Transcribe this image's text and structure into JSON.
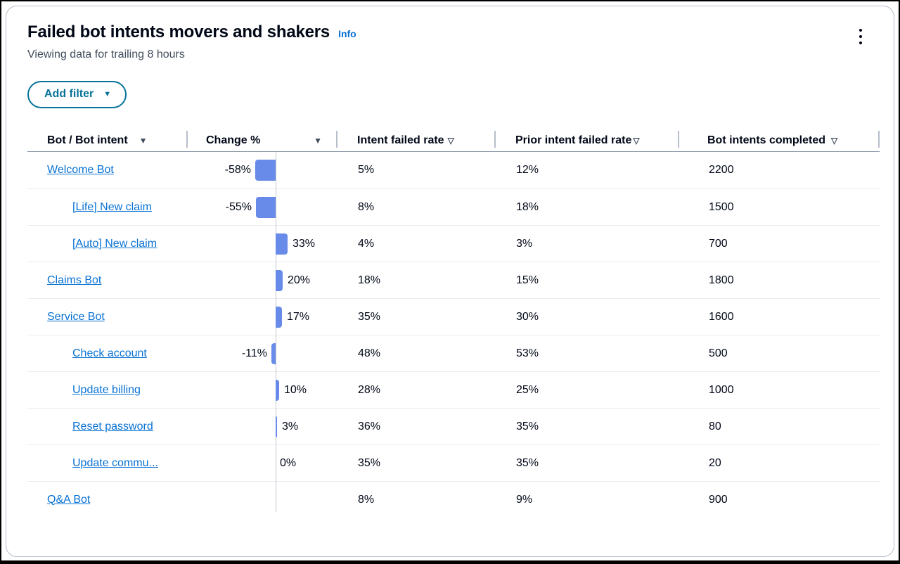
{
  "colors": {
    "accent-link": "#0972d3",
    "filter-accent": "#077398",
    "bar-fill": "#688ae8",
    "text-primary": "#000716",
    "text-secondary": "#414d5c",
    "card-border": "#b6bec9",
    "header-rule": "#8f9cab",
    "row-rule": "#e9ebed",
    "axis-line": "#c1c7d0"
  },
  "card": {
    "title": "Failed bot intents movers and shakers",
    "info_label": "Info",
    "subtitle": "Viewing data for trailing 8 hours",
    "add_filter_label": "Add filter"
  },
  "table": {
    "columns": [
      {
        "id": "bot",
        "label": "Bot / Bot intent",
        "sort_icon": "filled-triangle-down"
      },
      {
        "id": "change",
        "label": "Change %",
        "sort_icon": "filled-triangle-down"
      },
      {
        "id": "intent-failed-rate",
        "label": "Intent failed rate",
        "sort_icon": "outline-triangle-down"
      },
      {
        "id": "prior-intent-failed-rate",
        "label": "Prior intent failed rate",
        "sort_icon": "outline-triangle-down"
      },
      {
        "id": "bot-intents-completed",
        "label": "Bot intents completed",
        "sort_icon": "outline-triangle-down"
      }
    ],
    "rows": [
      {
        "name": "Welcome Bot",
        "level": 0,
        "change_pct": -58,
        "change_label": "-58%",
        "intent_failed_rate": "5%",
        "prior_intent_failed_rate": "12%",
        "bot_intents_completed": "2200"
      },
      {
        "name": "[Life] New claim",
        "level": 1,
        "change_pct": -55,
        "change_label": "-55%",
        "intent_failed_rate": "8%",
        "prior_intent_failed_rate": "18%",
        "bot_intents_completed": "1500"
      },
      {
        "name": "[Auto] New claim",
        "level": 1,
        "change_pct": 33,
        "change_label": "33%",
        "intent_failed_rate": "4%",
        "prior_intent_failed_rate": "3%",
        "bot_intents_completed": "700"
      },
      {
        "name": "Claims Bot",
        "level": 0,
        "change_pct": 20,
        "change_label": "20%",
        "intent_failed_rate": "18%",
        "prior_intent_failed_rate": "15%",
        "bot_intents_completed": "1800"
      },
      {
        "name": "Service Bot",
        "level": 0,
        "change_pct": 17,
        "change_label": "17%",
        "intent_failed_rate": "35%",
        "prior_intent_failed_rate": "30%",
        "bot_intents_completed": "1600"
      },
      {
        "name": "Check account",
        "level": 1,
        "change_pct": -11,
        "change_label": "-11%",
        "intent_failed_rate": "48%",
        "prior_intent_failed_rate": "53%",
        "bot_intents_completed": "500"
      },
      {
        "name": "Update billing",
        "level": 1,
        "change_pct": 10,
        "change_label": "10%",
        "intent_failed_rate": "28%",
        "prior_intent_failed_rate": "25%",
        "bot_intents_completed": "1000"
      },
      {
        "name": "Reset password",
        "level": 1,
        "change_pct": 3,
        "change_label": "3%",
        "intent_failed_rate": "36%",
        "prior_intent_failed_rate": "35%",
        "bot_intents_completed": "80"
      },
      {
        "name": "Update commu...",
        "level": 1,
        "change_pct": 0,
        "change_label": "0%",
        "intent_failed_rate": "35%",
        "prior_intent_failed_rate": "35%",
        "bot_intents_completed": "20"
      },
      {
        "name": "Q&A Bot",
        "level": 0,
        "change_pct": null,
        "change_label": "",
        "intent_failed_rate": "8%",
        "prior_intent_failed_rate": "9%",
        "bot_intents_completed": "900"
      }
    ]
  },
  "chart_data": {
    "type": "bar",
    "orientation": "horizontal-diverging",
    "title": "Change %",
    "categories": [
      "Welcome Bot",
      "[Life] New claim",
      "[Auto] New claim",
      "Claims Bot",
      "Service Bot",
      "Check account",
      "Update billing",
      "Reset password",
      "Update commu...",
      "Q&A Bot"
    ],
    "values": [
      -58,
      -55,
      33,
      20,
      17,
      -11,
      10,
      3,
      0,
      null
    ],
    "value_unit": "%",
    "baseline": 0
  }
}
